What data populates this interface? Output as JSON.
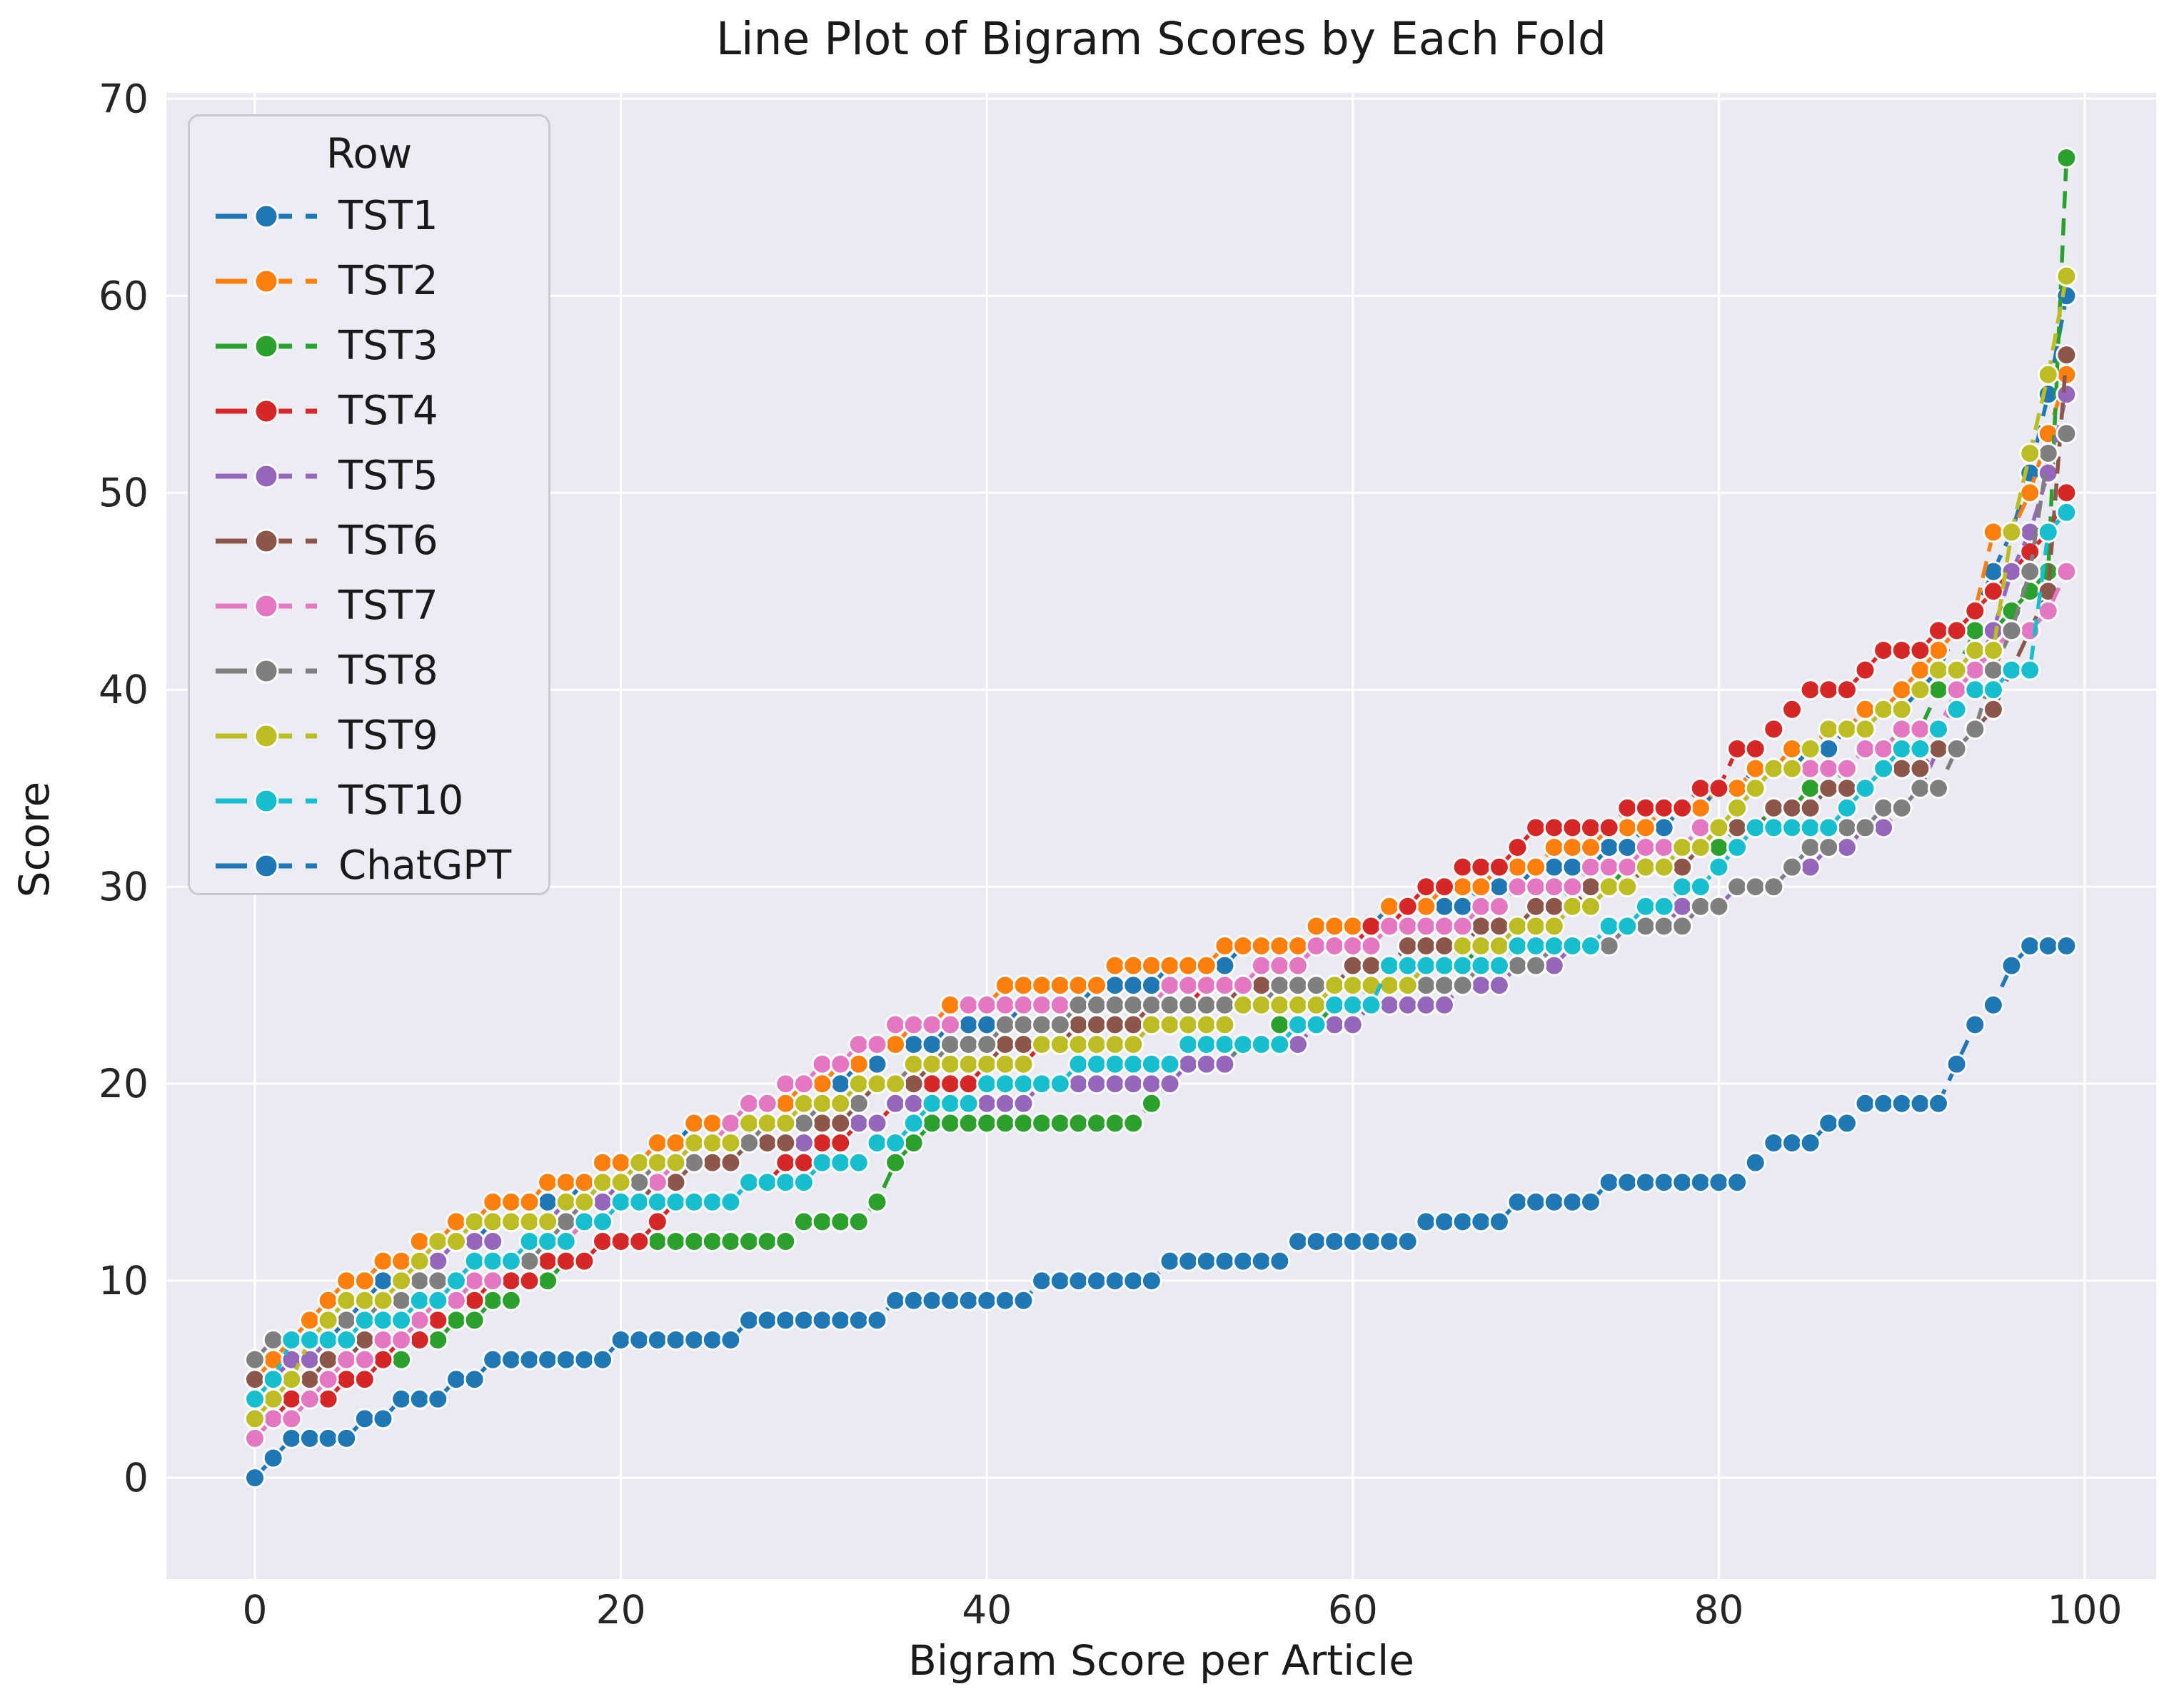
{
  "figure": {
    "title": "Line Plot of Bigram Scores by Each Fold",
    "background_color": "#ffffff",
    "axes_background_color": "#eaeaf2",
    "gridline_color": "#ffffff"
  },
  "chart_data": {
    "type": "line",
    "title": "Line Plot of Bigram Scores by Each Fold",
    "xlabel": "Bigram Score per Article",
    "ylabel": "Score",
    "xticks": [
      0,
      20,
      40,
      60,
      80,
      100
    ],
    "yticks": [
      0,
      10,
      20,
      30,
      40,
      50,
      60,
      70
    ],
    "xlim": [
      -4.84,
      103.9
    ],
    "ylim": [
      -5.14,
      70.3
    ],
    "grid": true,
    "legend": {
      "title": "Row",
      "position": "upper left"
    },
    "marker": "o",
    "linestyle": "dashed",
    "x": [
      0,
      1,
      2,
      3,
      4,
      5,
      6,
      7,
      8,
      9,
      10,
      11,
      12,
      13,
      14,
      15,
      16,
      17,
      18,
      19,
      20,
      21,
      22,
      23,
      24,
      25,
      26,
      27,
      28,
      29,
      30,
      31,
      32,
      33,
      34,
      35,
      36,
      37,
      38,
      39,
      40,
      41,
      42,
      43,
      44,
      45,
      46,
      47,
      48,
      49,
      50,
      51,
      52,
      53,
      54,
      55,
      56,
      57,
      58,
      59,
      60,
      61,
      62,
      63,
      64,
      65,
      66,
      67,
      68,
      69,
      70,
      71,
      72,
      73,
      74,
      75,
      76,
      77,
      78,
      79,
      80,
      81,
      82,
      83,
      84,
      85,
      86,
      87,
      88,
      89,
      90,
      91,
      92,
      93,
      94,
      95,
      96,
      97,
      98,
      99
    ],
    "series": [
      {
        "name": "TST1",
        "color": "#1f77b4",
        "values": [
          4,
          5,
          6,
          6,
          7,
          8,
          9,
          10,
          10,
          11,
          11,
          12,
          12,
          13,
          13,
          14,
          14,
          14,
          15,
          15,
          16,
          16,
          17,
          17,
          18,
          18,
          18,
          19,
          19,
          19,
          20,
          20,
          20,
          21,
          21,
          22,
          22,
          22,
          23,
          23,
          23,
          23,
          24,
          24,
          24,
          24,
          25,
          25,
          25,
          25,
          26,
          26,
          26,
          26,
          27,
          27,
          27,
          27,
          27,
          28,
          28,
          28,
          29,
          29,
          29,
          29,
          29,
          30,
          30,
          30,
          31,
          31,
          31,
          31,
          32,
          32,
          33,
          33,
          34,
          34,
          35,
          35,
          36,
          36,
          36,
          37,
          37,
          38,
          38,
          39,
          39,
          40,
          41,
          43,
          44,
          46,
          48,
          51,
          55,
          60
        ]
      },
      {
        "name": "TST2",
        "color": "#ff7f0e",
        "values": [
          5,
          6,
          7,
          8,
          9,
          10,
          10,
          11,
          11,
          12,
          12,
          13,
          13,
          14,
          14,
          14,
          15,
          15,
          15,
          16,
          16,
          16,
          17,
          17,
          18,
          18,
          18,
          19,
          19,
          19,
          20,
          20,
          21,
          21,
          22,
          22,
          23,
          23,
          24,
          24,
          24,
          25,
          25,
          25,
          25,
          25,
          25,
          26,
          26,
          26,
          26,
          26,
          26,
          27,
          27,
          27,
          27,
          27,
          28,
          28,
          28,
          28,
          29,
          29,
          29,
          30,
          30,
          30,
          31,
          31,
          31,
          32,
          32,
          32,
          33,
          33,
          33,
          34,
          34,
          34,
          35,
          35,
          36,
          36,
          37,
          37,
          38,
          38,
          39,
          39,
          40,
          41,
          42,
          43,
          44,
          48,
          48,
          50,
          53,
          56
        ]
      },
      {
        "name": "TST3",
        "color": "#2ca02c",
        "values": [
          3,
          3,
          3,
          4,
          4,
          5,
          5,
          6,
          6,
          7,
          7,
          8,
          8,
          9,
          9,
          10,
          10,
          11,
          11,
          12,
          12,
          12,
          12,
          12,
          12,
          12,
          12,
          12,
          12,
          12,
          13,
          13,
          13,
          13,
          14,
          16,
          17,
          18,
          18,
          18,
          18,
          18,
          18,
          18,
          18,
          18,
          18,
          18,
          18,
          19,
          20,
          21,
          21,
          21,
          22,
          22,
          23,
          23,
          23,
          24,
          24,
          25,
          25,
          25,
          26,
          26,
          26,
          27,
          27,
          28,
          29,
          29,
          30,
          30,
          30,
          31,
          31,
          31,
          32,
          32,
          32,
          33,
          33,
          34,
          34,
          35,
          35,
          36,
          37,
          37,
          38,
          38,
          40,
          41,
          43,
          43,
          44,
          45,
          46,
          67
        ]
      },
      {
        "name": "TST4",
        "color": "#d62728",
        "values": [
          3,
          3,
          4,
          4,
          4,
          5,
          5,
          6,
          7,
          7,
          8,
          9,
          9,
          10,
          10,
          10,
          11,
          11,
          11,
          12,
          12,
          12,
          13,
          14,
          14,
          14,
          14,
          15,
          15,
          16,
          16,
          17,
          17,
          18,
          18,
          19,
          19,
          20,
          20,
          20,
          21,
          21,
          21,
          22,
          22,
          22,
          23,
          23,
          23,
          24,
          24,
          24,
          25,
          25,
          25,
          26,
          26,
          26,
          27,
          27,
          27,
          28,
          28,
          29,
          30,
          30,
          31,
          31,
          31,
          32,
          33,
          33,
          33,
          33,
          33,
          34,
          34,
          34,
          34,
          35,
          35,
          37,
          37,
          38,
          39,
          40,
          40,
          40,
          41,
          42,
          42,
          42,
          43,
          43,
          44,
          45,
          46,
          47,
          48,
          50
        ]
      },
      {
        "name": "TST5",
        "color": "#9467bd",
        "values": [
          4,
          5,
          6,
          6,
          7,
          7,
          8,
          9,
          10,
          11,
          11,
          12,
          12,
          12,
          13,
          13,
          13,
          14,
          14,
          14,
          15,
          15,
          15,
          16,
          16,
          16,
          16,
          17,
          17,
          17,
          17,
          18,
          18,
          18,
          18,
          19,
          19,
          19,
          19,
          19,
          19,
          19,
          19,
          20,
          20,
          20,
          20,
          20,
          20,
          20,
          20,
          21,
          21,
          21,
          22,
          22,
          22,
          22,
          23,
          23,
          23,
          24,
          24,
          24,
          24,
          24,
          25,
          25,
          25,
          26,
          26,
          26,
          27,
          27,
          27,
          28,
          28,
          28,
          29,
          29,
          29,
          30,
          30,
          30,
          31,
          31,
          32,
          32,
          33,
          33,
          34,
          35,
          37,
          40,
          41,
          43,
          46,
          48,
          51,
          55
        ]
      },
      {
        "name": "TST6",
        "color": "#8c564b",
        "values": [
          5,
          5,
          5,
          5,
          6,
          6,
          7,
          7,
          8,
          8,
          9,
          9,
          10,
          10,
          11,
          11,
          12,
          12,
          13,
          13,
          14,
          14,
          15,
          15,
          16,
          16,
          16,
          17,
          17,
          17,
          18,
          18,
          18,
          19,
          20,
          20,
          20,
          21,
          21,
          21,
          21,
          22,
          22,
          22,
          22,
          23,
          23,
          23,
          23,
          24,
          24,
          24,
          24,
          24,
          25,
          25,
          25,
          25,
          25,
          25,
          26,
          26,
          26,
          27,
          27,
          27,
          27,
          28,
          28,
          28,
          29,
          29,
          29,
          30,
          30,
          30,
          31,
          31,
          31,
          32,
          33,
          33,
          33,
          34,
          34,
          34,
          35,
          35,
          35,
          36,
          36,
          36,
          37,
          37,
          38,
          39,
          41,
          43,
          45,
          57
        ]
      },
      {
        "name": "TST7",
        "color": "#e377c2",
        "values": [
          2,
          3,
          3,
          4,
          5,
          6,
          6,
          7,
          7,
          8,
          9,
          9,
          10,
          10,
          11,
          11,
          12,
          12,
          13,
          13,
          14,
          15,
          15,
          16,
          17,
          17,
          18,
          19,
          19,
          20,
          20,
          21,
          21,
          22,
          22,
          23,
          23,
          23,
          23,
          24,
          24,
          24,
          24,
          24,
          24,
          24,
          24,
          24,
          24,
          24,
          25,
          25,
          25,
          25,
          25,
          26,
          26,
          26,
          27,
          27,
          27,
          27,
          28,
          28,
          28,
          28,
          28,
          29,
          29,
          30,
          30,
          30,
          30,
          31,
          31,
          31,
          32,
          32,
          32,
          33,
          33,
          34,
          35,
          36,
          36,
          36,
          36,
          36,
          37,
          37,
          38,
          38,
          38,
          40,
          41,
          42,
          43,
          43,
          44,
          46
        ]
      },
      {
        "name": "TST8",
        "color": "#7f7f7f",
        "values": [
          6,
          7,
          7,
          7,
          8,
          8,
          8,
          9,
          9,
          10,
          10,
          10,
          11,
          11,
          11,
          11,
          12,
          13,
          14,
          15,
          15,
          15,
          16,
          16,
          16,
          17,
          17,
          17,
          18,
          18,
          18,
          19,
          19,
          19,
          20,
          20,
          21,
          21,
          22,
          22,
          22,
          23,
          23,
          23,
          23,
          24,
          24,
          24,
          24,
          24,
          24,
          24,
          24,
          24,
          24,
          24,
          25,
          25,
          25,
          25,
          25,
          25,
          25,
          25,
          25,
          25,
          25,
          26,
          26,
          26,
          26,
          27,
          27,
          27,
          27,
          28,
          28,
          28,
          28,
          29,
          29,
          30,
          30,
          30,
          31,
          32,
          32,
          33,
          33,
          34,
          34,
          35,
          35,
          37,
          38,
          41,
          43,
          46,
          52,
          53
        ]
      },
      {
        "name": "TST9",
        "color": "#bcbd22",
        "values": [
          3,
          4,
          5,
          7,
          8,
          9,
          9,
          9,
          10,
          11,
          12,
          12,
          13,
          13,
          13,
          13,
          13,
          14,
          14,
          15,
          15,
          16,
          16,
          16,
          17,
          17,
          17,
          18,
          18,
          18,
          19,
          19,
          19,
          20,
          20,
          20,
          21,
          21,
          21,
          21,
          21,
          21,
          21,
          22,
          22,
          22,
          22,
          22,
          22,
          23,
          23,
          23,
          23,
          23,
          24,
          24,
          24,
          24,
          24,
          25,
          25,
          25,
          25,
          25,
          26,
          26,
          27,
          27,
          27,
          28,
          28,
          28,
          29,
          29,
          30,
          30,
          31,
          31,
          32,
          32,
          33,
          34,
          35,
          36,
          36,
          37,
          38,
          38,
          38,
          39,
          39,
          40,
          41,
          41,
          42,
          42,
          48,
          52,
          56,
          61
        ]
      },
      {
        "name": "TST10",
        "color": "#17becf",
        "values": [
          4,
          5,
          7,
          7,
          7,
          7,
          8,
          8,
          8,
          9,
          9,
          10,
          11,
          11,
          11,
          12,
          12,
          12,
          13,
          13,
          14,
          14,
          14,
          14,
          14,
          14,
          14,
          15,
          15,
          15,
          15,
          16,
          16,
          16,
          17,
          17,
          18,
          19,
          19,
          19,
          20,
          20,
          20,
          20,
          20,
          21,
          21,
          21,
          21,
          21,
          21,
          22,
          22,
          22,
          22,
          22,
          22,
          23,
          23,
          24,
          24,
          24,
          26,
          26,
          26,
          26,
          26,
          26,
          26,
          27,
          27,
          27,
          27,
          27,
          28,
          28,
          29,
          29,
          30,
          30,
          31,
          32,
          33,
          33,
          33,
          33,
          33,
          34,
          35,
          36,
          37,
          37,
          38,
          39,
          40,
          40,
          41,
          41,
          48,
          49
        ]
      },
      {
        "name": "ChatGPT",
        "color": "#1f77b4",
        "values": [
          0,
          1,
          2,
          2,
          2,
          2,
          3,
          3,
          4,
          4,
          4,
          5,
          5,
          6,
          6,
          6,
          6,
          6,
          6,
          6,
          7,
          7,
          7,
          7,
          7,
          7,
          7,
          8,
          8,
          8,
          8,
          8,
          8,
          8,
          8,
          9,
          9,
          9,
          9,
          9,
          9,
          9,
          9,
          10,
          10,
          10,
          10,
          10,
          10,
          10,
          11,
          11,
          11,
          11,
          11,
          11,
          11,
          12,
          12,
          12,
          12,
          12,
          12,
          12,
          13,
          13,
          13,
          13,
          13,
          14,
          14,
          14,
          14,
          14,
          15,
          15,
          15,
          15,
          15,
          15,
          15,
          15,
          16,
          17,
          17,
          17,
          18,
          18,
          19,
          19,
          19,
          19,
          19,
          21,
          23,
          24,
          26,
          27,
          27,
          27
        ]
      }
    ]
  }
}
